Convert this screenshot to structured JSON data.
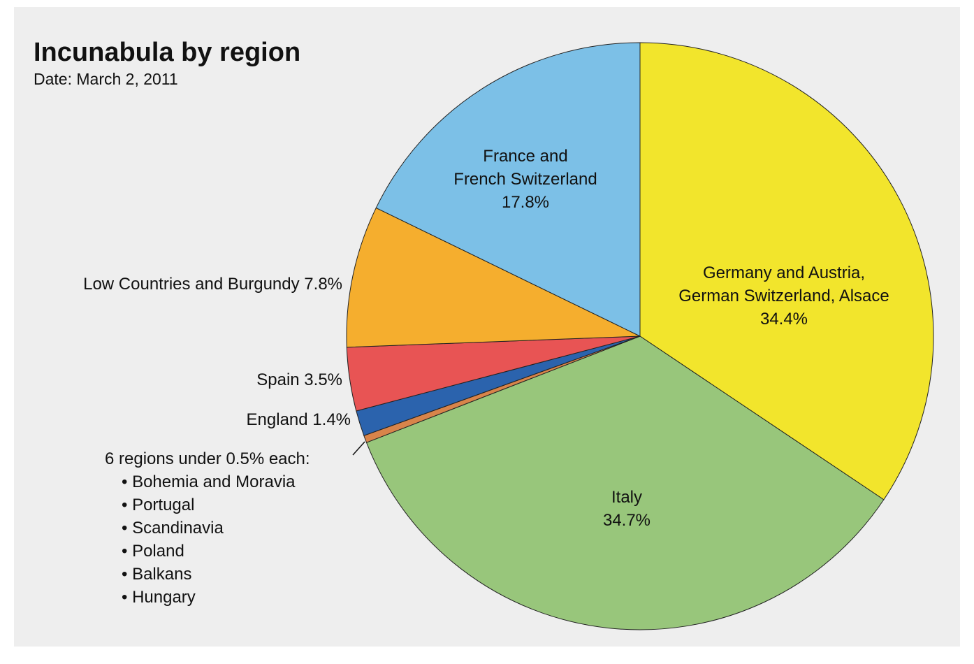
{
  "chart_data": {
    "type": "pie",
    "title": "Incunabula by region",
    "subtitle": "Date: March 2, 2011",
    "categories": [
      "Germany and Austria,\nGerman Switzerland, Alsace",
      "Italy",
      "6 regions under 0.5% each:",
      "England",
      "Spain",
      "Low Countries and Burgundy",
      "France and\nFrench Switzerland"
    ],
    "values": [
      34.4,
      34.7,
      0.4,
      1.4,
      3.5,
      7.8,
      17.8
    ],
    "value_labels": [
      "34.4%",
      "34.7%",
      null,
      "1.4%",
      "3.5%",
      "7.8%",
      "17.8%"
    ],
    "colors": [
      "#f2e52c",
      "#98c67b",
      "#d8844a",
      "#2b63ad",
      "#e85454",
      "#f5ae2e",
      "#7cc0e7"
    ],
    "other_regions": [
      "• Bohemia and Moravia",
      "• Portugal",
      "• Scandinavia",
      "• Poland",
      "• Balkans",
      "• Hungary"
    ]
  }
}
